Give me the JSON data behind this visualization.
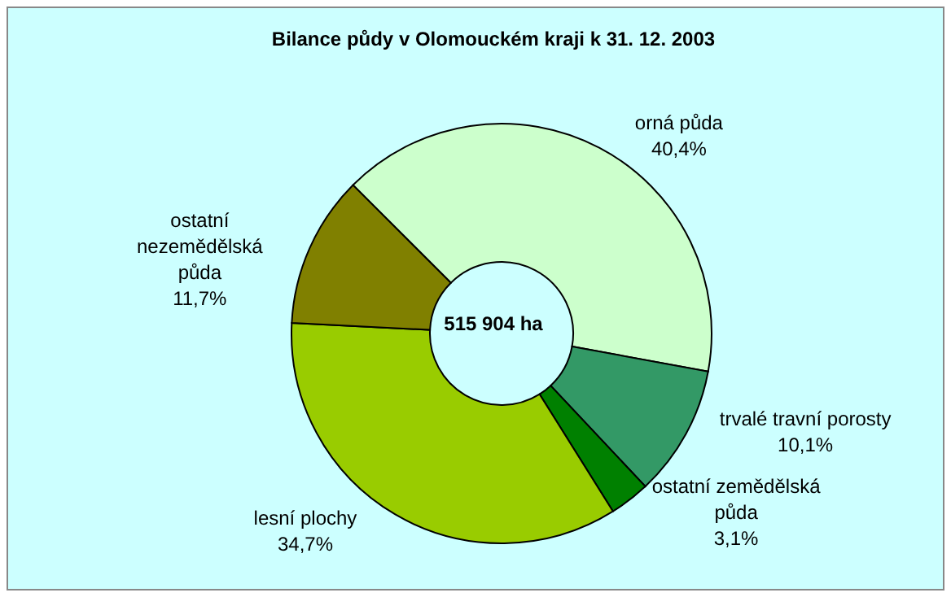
{
  "chart_data": {
    "type": "donut",
    "title": "Bilance půdy v Olomouckém kraji k 31. 12. 2003",
    "categories": [
      "orná půda",
      "trvalé travní porosty",
      "ostatní zemědělská půda",
      "lesní plochy",
      "ostatní nezemědělská půda"
    ],
    "values": [
      40.4,
      10.1,
      3.1,
      34.7,
      11.7
    ],
    "colors": [
      "#ccffcc",
      "#339966",
      "#008000",
      "#99cc00",
      "#808000"
    ],
    "value_labels": [
      "40,4%",
      "10,1%",
      "3,1%",
      "34,7%",
      "11,7%"
    ],
    "annotations": [
      "515 904 ha"
    ]
  }
}
